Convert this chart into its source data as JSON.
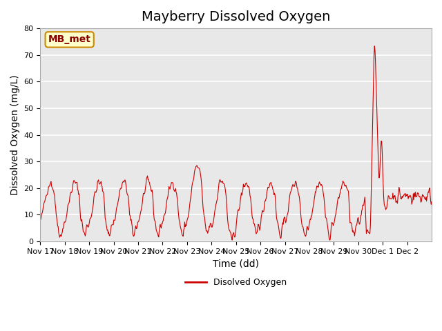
{
  "title": "Mayberry Dissolved Oxygen",
  "xlabel": "Time (dd)",
  "ylabel": "Dissolved Oxygen (mg/L)",
  "line_color": "#cc0000",
  "line_label": "Disolved Oxygen",
  "legend_label": "MB_met",
  "legend_bg": "#ffffcc",
  "legend_edge": "#cc8800",
  "legend_text_color": "#880000",
  "bg_color": "#e8e8e8",
  "ylim": [
    0,
    80
  ],
  "yticks": [
    0,
    10,
    20,
    30,
    40,
    50,
    60,
    70,
    80
  ],
  "xtick_positions": [
    0,
    1,
    2,
    3,
    4,
    5,
    6,
    7,
    8,
    9,
    10,
    11,
    12,
    13,
    14,
    15
  ],
  "xtick_labels": [
    "Nov 17",
    "Nov 18",
    "Nov 19",
    "Nov 20",
    "Nov 21",
    "Nov 22",
    "Nov 23",
    "Nov 24",
    "Nov 25",
    "Nov 26",
    "Nov 27",
    "Nov 28",
    "Nov 29",
    "Nov 30",
    "Dec 1",
    "Dec 2"
  ],
  "title_fontsize": 14,
  "axis_fontsize": 10,
  "tick_fontsize": 8,
  "n_days": 16,
  "pts_per_day": 48
}
